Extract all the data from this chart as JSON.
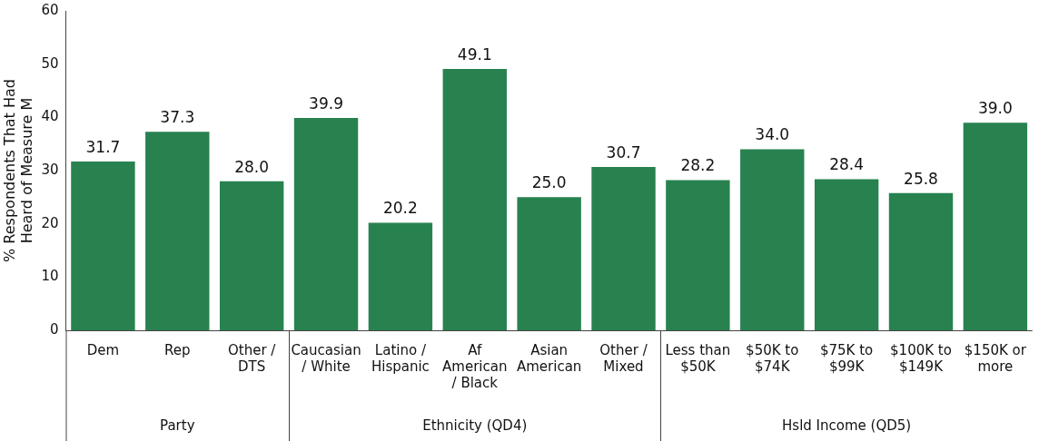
{
  "chart_data": {
    "type": "bar",
    "ylabel": "% Respondents That Had Heard of Measure M",
    "categories": [
      "Dem",
      "Rep",
      "Other / DTS",
      "Caucasian / White",
      "Latino / Hispanic",
      "Af American / Black",
      "Asian American",
      "Other / Mixed",
      "Less than $50K",
      "$50K to $74K",
      "$75K to $99K",
      "$100K to $149K",
      "$150K or more"
    ],
    "values": [
      31.7,
      37.3,
      28.0,
      39.9,
      20.2,
      49.1,
      25.0,
      30.7,
      28.2,
      34.0,
      28.4,
      25.8,
      39.0
    ],
    "value_labels": [
      "31.7",
      "37.3",
      "28.0",
      "39.9",
      "20.2",
      "49.1",
      "25.0",
      "30.7",
      "28.2",
      "34.0",
      "28.4",
      "25.8",
      "39.0"
    ],
    "color": "#27824f",
    "ylim": [
      0,
      60
    ],
    "yticks": [
      0,
      10,
      20,
      30,
      40,
      50,
      60
    ],
    "grid": false,
    "legend": false,
    "annotations": [
      "Party",
      "Ethnicity (QD4)",
      "Hsld Income (QD5)"
    ]
  }
}
